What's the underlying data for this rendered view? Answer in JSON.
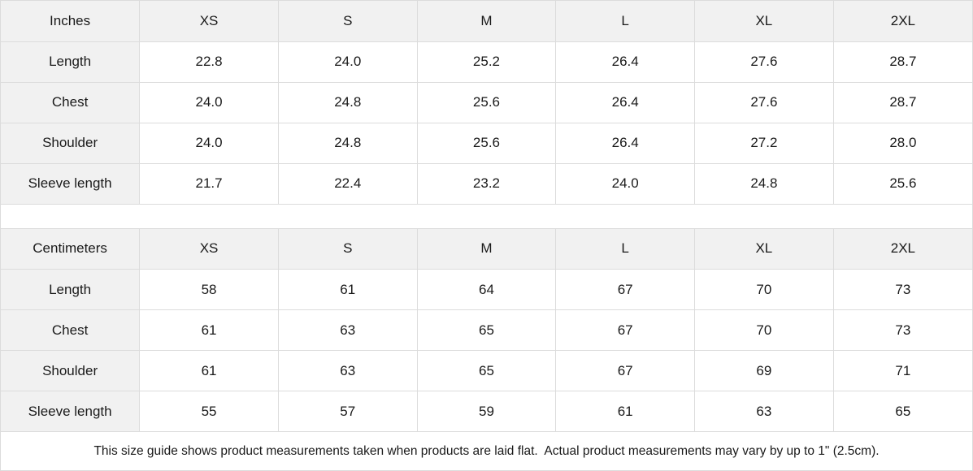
{
  "page": {
    "background_color": "#ffffff",
    "border_color": "#dcdcdc",
    "header_background_color": "#f1f1f1",
    "text_color": "#1a1a1a"
  },
  "tables": [
    {
      "unit_label": "Inches",
      "size_headers": [
        "XS",
        "S",
        "M",
        "L",
        "XL",
        "2XL"
      ],
      "rows": [
        {
          "label": "Length",
          "values": [
            "22.8",
            "24.0",
            "25.2",
            "26.4",
            "27.6",
            "28.7"
          ]
        },
        {
          "label": "Chest",
          "values": [
            "24.0",
            "24.8",
            "25.6",
            "26.4",
            "27.6",
            "28.7"
          ]
        },
        {
          "label": "Shoulder",
          "values": [
            "24.0",
            "24.8",
            "25.6",
            "26.4",
            "27.2",
            "28.0"
          ]
        },
        {
          "label": "Sleeve length",
          "values": [
            "21.7",
            "22.4",
            "23.2",
            "24.0",
            "24.8",
            "25.6"
          ]
        }
      ]
    },
    {
      "unit_label": "Centimeters",
      "size_headers": [
        "XS",
        "S",
        "M",
        "L",
        "XL",
        "2XL"
      ],
      "rows": [
        {
          "label": "Length",
          "values": [
            "58",
            "61",
            "64",
            "67",
            "70",
            "73"
          ]
        },
        {
          "label": "Chest",
          "values": [
            "61",
            "63",
            "65",
            "67",
            "70",
            "73"
          ]
        },
        {
          "label": "Shoulder",
          "values": [
            "61",
            "63",
            "65",
            "67",
            "69",
            "71"
          ]
        },
        {
          "label": "Sleeve length",
          "values": [
            "55",
            "57",
            "59",
            "61",
            "63",
            "65"
          ]
        }
      ]
    }
  ],
  "footer": {
    "note": "This size guide shows product measurements taken when products are laid flat.  Actual product measurements may vary by up to 1\" (2.5cm)."
  }
}
